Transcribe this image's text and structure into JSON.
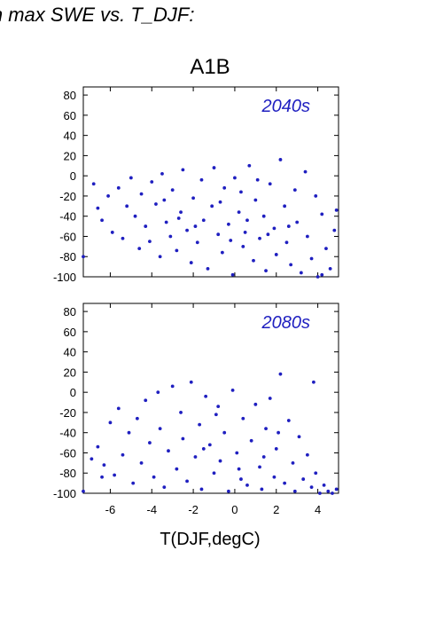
{
  "header": {
    "title": "in max SWE vs. T_DJF:"
  },
  "colors": {
    "points": "#1f1fc0",
    "axis": "#000000",
    "background": "#ffffff"
  },
  "chart_data": {
    "type": "scatter",
    "scenario": "A1B",
    "xlabel": "T(DJF,degC)",
    "ylabel": "",
    "xlim": [
      -7.3,
      5
    ],
    "ylim": [
      -100,
      88
    ],
    "xticks": [
      -6,
      -4,
      -2,
      0,
      2,
      4
    ],
    "yticks": [
      -100,
      -80,
      -60,
      -40,
      -20,
      0,
      20,
      40,
      60,
      80
    ],
    "grid": false,
    "panels": [
      {
        "label": "2040s",
        "series": [
          {
            "values_note": "",
            "points": [
              [
                -7.3,
                -80
              ],
              [
                -6.8,
                -8
              ],
              [
                -6.6,
                -32
              ],
              [
                -6.4,
                -44
              ],
              [
                -6.1,
                -20
              ],
              [
                -5.9,
                -56
              ],
              [
                -5.6,
                -12
              ],
              [
                -5.4,
                -62
              ],
              [
                -5.2,
                -30
              ],
              [
                -5.0,
                -2
              ],
              [
                -4.8,
                -40
              ],
              [
                -4.6,
                -72
              ],
              [
                -4.5,
                -18
              ],
              [
                -4.3,
                -50
              ],
              [
                -4.1,
                -65
              ],
              [
                -4.0,
                -6
              ],
              [
                -3.8,
                -28
              ],
              [
                -3.6,
                -80
              ],
              [
                -3.5,
                2
              ],
              [
                -3.3,
                -46
              ],
              [
                -3.1,
                -60
              ],
              [
                -3.0,
                -14
              ],
              [
                -2.8,
                -74
              ],
              [
                -2.6,
                -36
              ],
              [
                -2.5,
                6
              ],
              [
                -2.3,
                -54
              ],
              [
                -2.1,
                -86
              ],
              [
                -2.0,
                -22
              ],
              [
                -1.8,
                -66
              ],
              [
                -1.6,
                -4
              ],
              [
                -1.5,
                -44
              ],
              [
                -1.3,
                -92
              ],
              [
                -1.1,
                -30
              ],
              [
                -1.0,
                8
              ],
              [
                -0.8,
                -58
              ],
              [
                -0.6,
                -76
              ],
              [
                -0.5,
                -12
              ],
              [
                -0.3,
                -48
              ],
              [
                -0.1,
                -98
              ],
              [
                0.0,
                -2
              ],
              [
                0.2,
                -36
              ],
              [
                0.4,
                -70
              ],
              [
                0.5,
                -56
              ],
              [
                0.7,
                10
              ],
              [
                0.9,
                -84
              ],
              [
                1.0,
                -24
              ],
              [
                1.2,
                -62
              ],
              [
                1.4,
                -40
              ],
              [
                1.5,
                -94
              ],
              [
                1.7,
                -8
              ],
              [
                1.9,
                -52
              ],
              [
                2.0,
                -78
              ],
              [
                2.2,
                16
              ],
              [
                2.4,
                -30
              ],
              [
                2.5,
                -66
              ],
              [
                2.7,
                -88
              ],
              [
                2.9,
                -14
              ],
              [
                3.0,
                -46
              ],
              [
                3.2,
                -96
              ],
              [
                3.4,
                4
              ],
              [
                3.5,
                -60
              ],
              [
                3.7,
                -82
              ],
              [
                3.9,
                -20
              ],
              [
                4.0,
                -100
              ],
              [
                4.2,
                -38
              ],
              [
                4.4,
                -72
              ],
              [
                4.6,
                -92
              ],
              [
                4.8,
                -54
              ],
              [
                4.9,
                -34
              ],
              [
                4.2,
                -98
              ],
              [
                0.6,
                -44
              ],
              [
                -0.7,
                -26
              ],
              [
                1.6,
                -58
              ],
              [
                -1.9,
                -50
              ],
              [
                0.3,
                -16
              ],
              [
                -2.7,
                -42
              ],
              [
                2.6,
                -50
              ],
              [
                -3.4,
                -24
              ],
              [
                1.1,
                -4
              ],
              [
                -0.2,
                -64
              ]
            ]
          }
        ]
      },
      {
        "label": "2080s",
        "series": [
          {
            "points": [
              [
                -7.3,
                -98
              ],
              [
                -6.9,
                -66
              ],
              [
                -6.6,
                -54
              ],
              [
                -6.3,
                -72
              ],
              [
                -6.0,
                -30
              ],
              [
                -5.8,
                -82
              ],
              [
                -5.6,
                -16
              ],
              [
                -5.4,
                -62
              ],
              [
                -5.1,
                -40
              ],
              [
                -4.9,
                -90
              ],
              [
                -4.7,
                -26
              ],
              [
                -4.5,
                -70
              ],
              [
                -4.3,
                -8
              ],
              [
                -4.1,
                -50
              ],
              [
                -3.9,
                -84
              ],
              [
                -3.7,
                0
              ],
              [
                -3.6,
                -36
              ],
              [
                -3.4,
                -94
              ],
              [
                -3.2,
                -58
              ],
              [
                -3.0,
                6
              ],
              [
                -2.8,
                -76
              ],
              [
                -2.6,
                -20
              ],
              [
                -2.5,
                -46
              ],
              [
                -2.3,
                -88
              ],
              [
                -2.1,
                10
              ],
              [
                -1.9,
                -64
              ],
              [
                -1.7,
                -32
              ],
              [
                -1.6,
                -96
              ],
              [
                -1.4,
                -4
              ],
              [
                -1.2,
                -52
              ],
              [
                -1.0,
                -80
              ],
              [
                -0.8,
                -14
              ],
              [
                -0.7,
                -68
              ],
              [
                -0.5,
                -40
              ],
              [
                -0.3,
                -98
              ],
              [
                -0.1,
                2
              ],
              [
                0.1,
                -60
              ],
              [
                0.3,
                -86
              ],
              [
                0.4,
                -26
              ],
              [
                0.6,
                -92
              ],
              [
                0.8,
                -48
              ],
              [
                1.0,
                -12
              ],
              [
                1.2,
                -74
              ],
              [
                1.3,
                -96
              ],
              [
                1.5,
                -36
              ],
              [
                1.7,
                -6
              ],
              [
                1.9,
                -84
              ],
              [
                2.0,
                -56
              ],
              [
                2.2,
                18
              ],
              [
                2.4,
                -90
              ],
              [
                2.6,
                -28
              ],
              [
                2.8,
                -70
              ],
              [
                2.9,
                -98
              ],
              [
                3.1,
                -44
              ],
              [
                3.3,
                -86
              ],
              [
                3.5,
                -62
              ],
              [
                3.7,
                -94
              ],
              [
                3.9,
                -80
              ],
              [
                4.1,
                -100
              ],
              [
                4.3,
                -92
              ],
              [
                4.5,
                -98
              ],
              [
                4.7,
                -100
              ],
              [
                4.9,
                -96
              ],
              [
                3.8,
                10
              ],
              [
                -6.4,
                -84
              ],
              [
                0.2,
                -76
              ],
              [
                -1.5,
                -56
              ],
              [
                1.4,
                -64
              ],
              [
                -0.9,
                -22
              ],
              [
                2.1,
                -40
              ]
            ]
          }
        ]
      }
    ]
  }
}
